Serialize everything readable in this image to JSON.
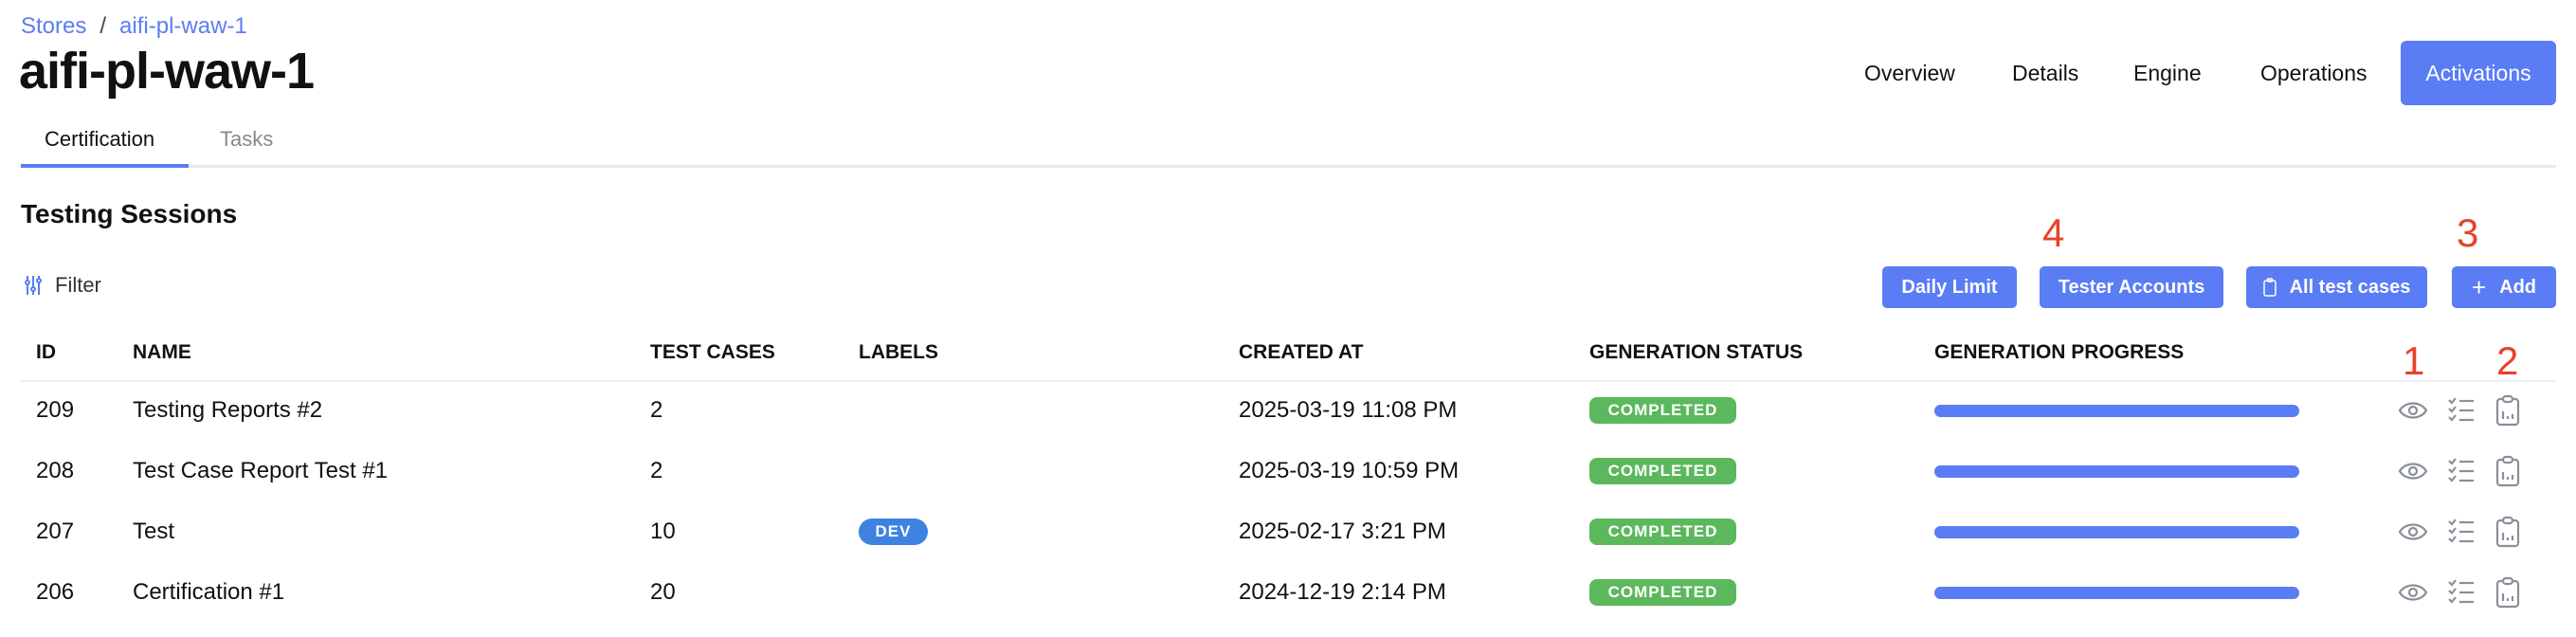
{
  "breadcrumb": {
    "root": "Stores",
    "separator": "/",
    "current": "aifi-pl-waw-1"
  },
  "page_title": "aifi-pl-waw-1",
  "nav": {
    "items": [
      "Overview",
      "Details",
      "Engine",
      "Operations"
    ],
    "active": "Activations"
  },
  "tabs": {
    "active": "Certification",
    "other": "Tasks"
  },
  "section_title": "Testing Sessions",
  "filter_label": "Filter",
  "buttons": {
    "daily_limit": "Daily Limit",
    "tester_accounts": "Tester Accounts",
    "all_test_cases": "All test cases",
    "add": "Add"
  },
  "annotations": {
    "a1": "1",
    "a2": "2",
    "a3": "3",
    "a4": "4"
  },
  "columns": {
    "id": "ID",
    "name": "NAME",
    "test_cases": "TEST CASES",
    "labels": "LABELS",
    "created_at": "CREATED AT",
    "generation_status": "GENERATION STATUS",
    "generation_progress": "GENERATION PROGRESS"
  },
  "rows": [
    {
      "id": "209",
      "name": "Testing Reports #2",
      "test_cases": "2",
      "label": "",
      "created_at": "2025-03-19 11:08 PM",
      "status": "COMPLETED",
      "progress": 100
    },
    {
      "id": "208",
      "name": "Test Case Report Test #1",
      "test_cases": "2",
      "label": "",
      "created_at": "2025-03-19 10:59 PM",
      "status": "COMPLETED",
      "progress": 100
    },
    {
      "id": "207",
      "name": "Test",
      "test_cases": "10",
      "label": "DEV",
      "created_at": "2025-02-17 3:21 PM",
      "status": "COMPLETED",
      "progress": 100
    },
    {
      "id": "206",
      "name": "Certification #1",
      "test_cases": "20",
      "label": "",
      "created_at": "2024-12-19 2:14 PM",
      "status": "COMPLETED",
      "progress": 100
    }
  ],
  "colors": {
    "accent": "#5a7cf5",
    "completed": "#5cb85c",
    "label_dev": "#3d82e0",
    "annotation": "#e8412c",
    "icon": "#8a8f98"
  }
}
